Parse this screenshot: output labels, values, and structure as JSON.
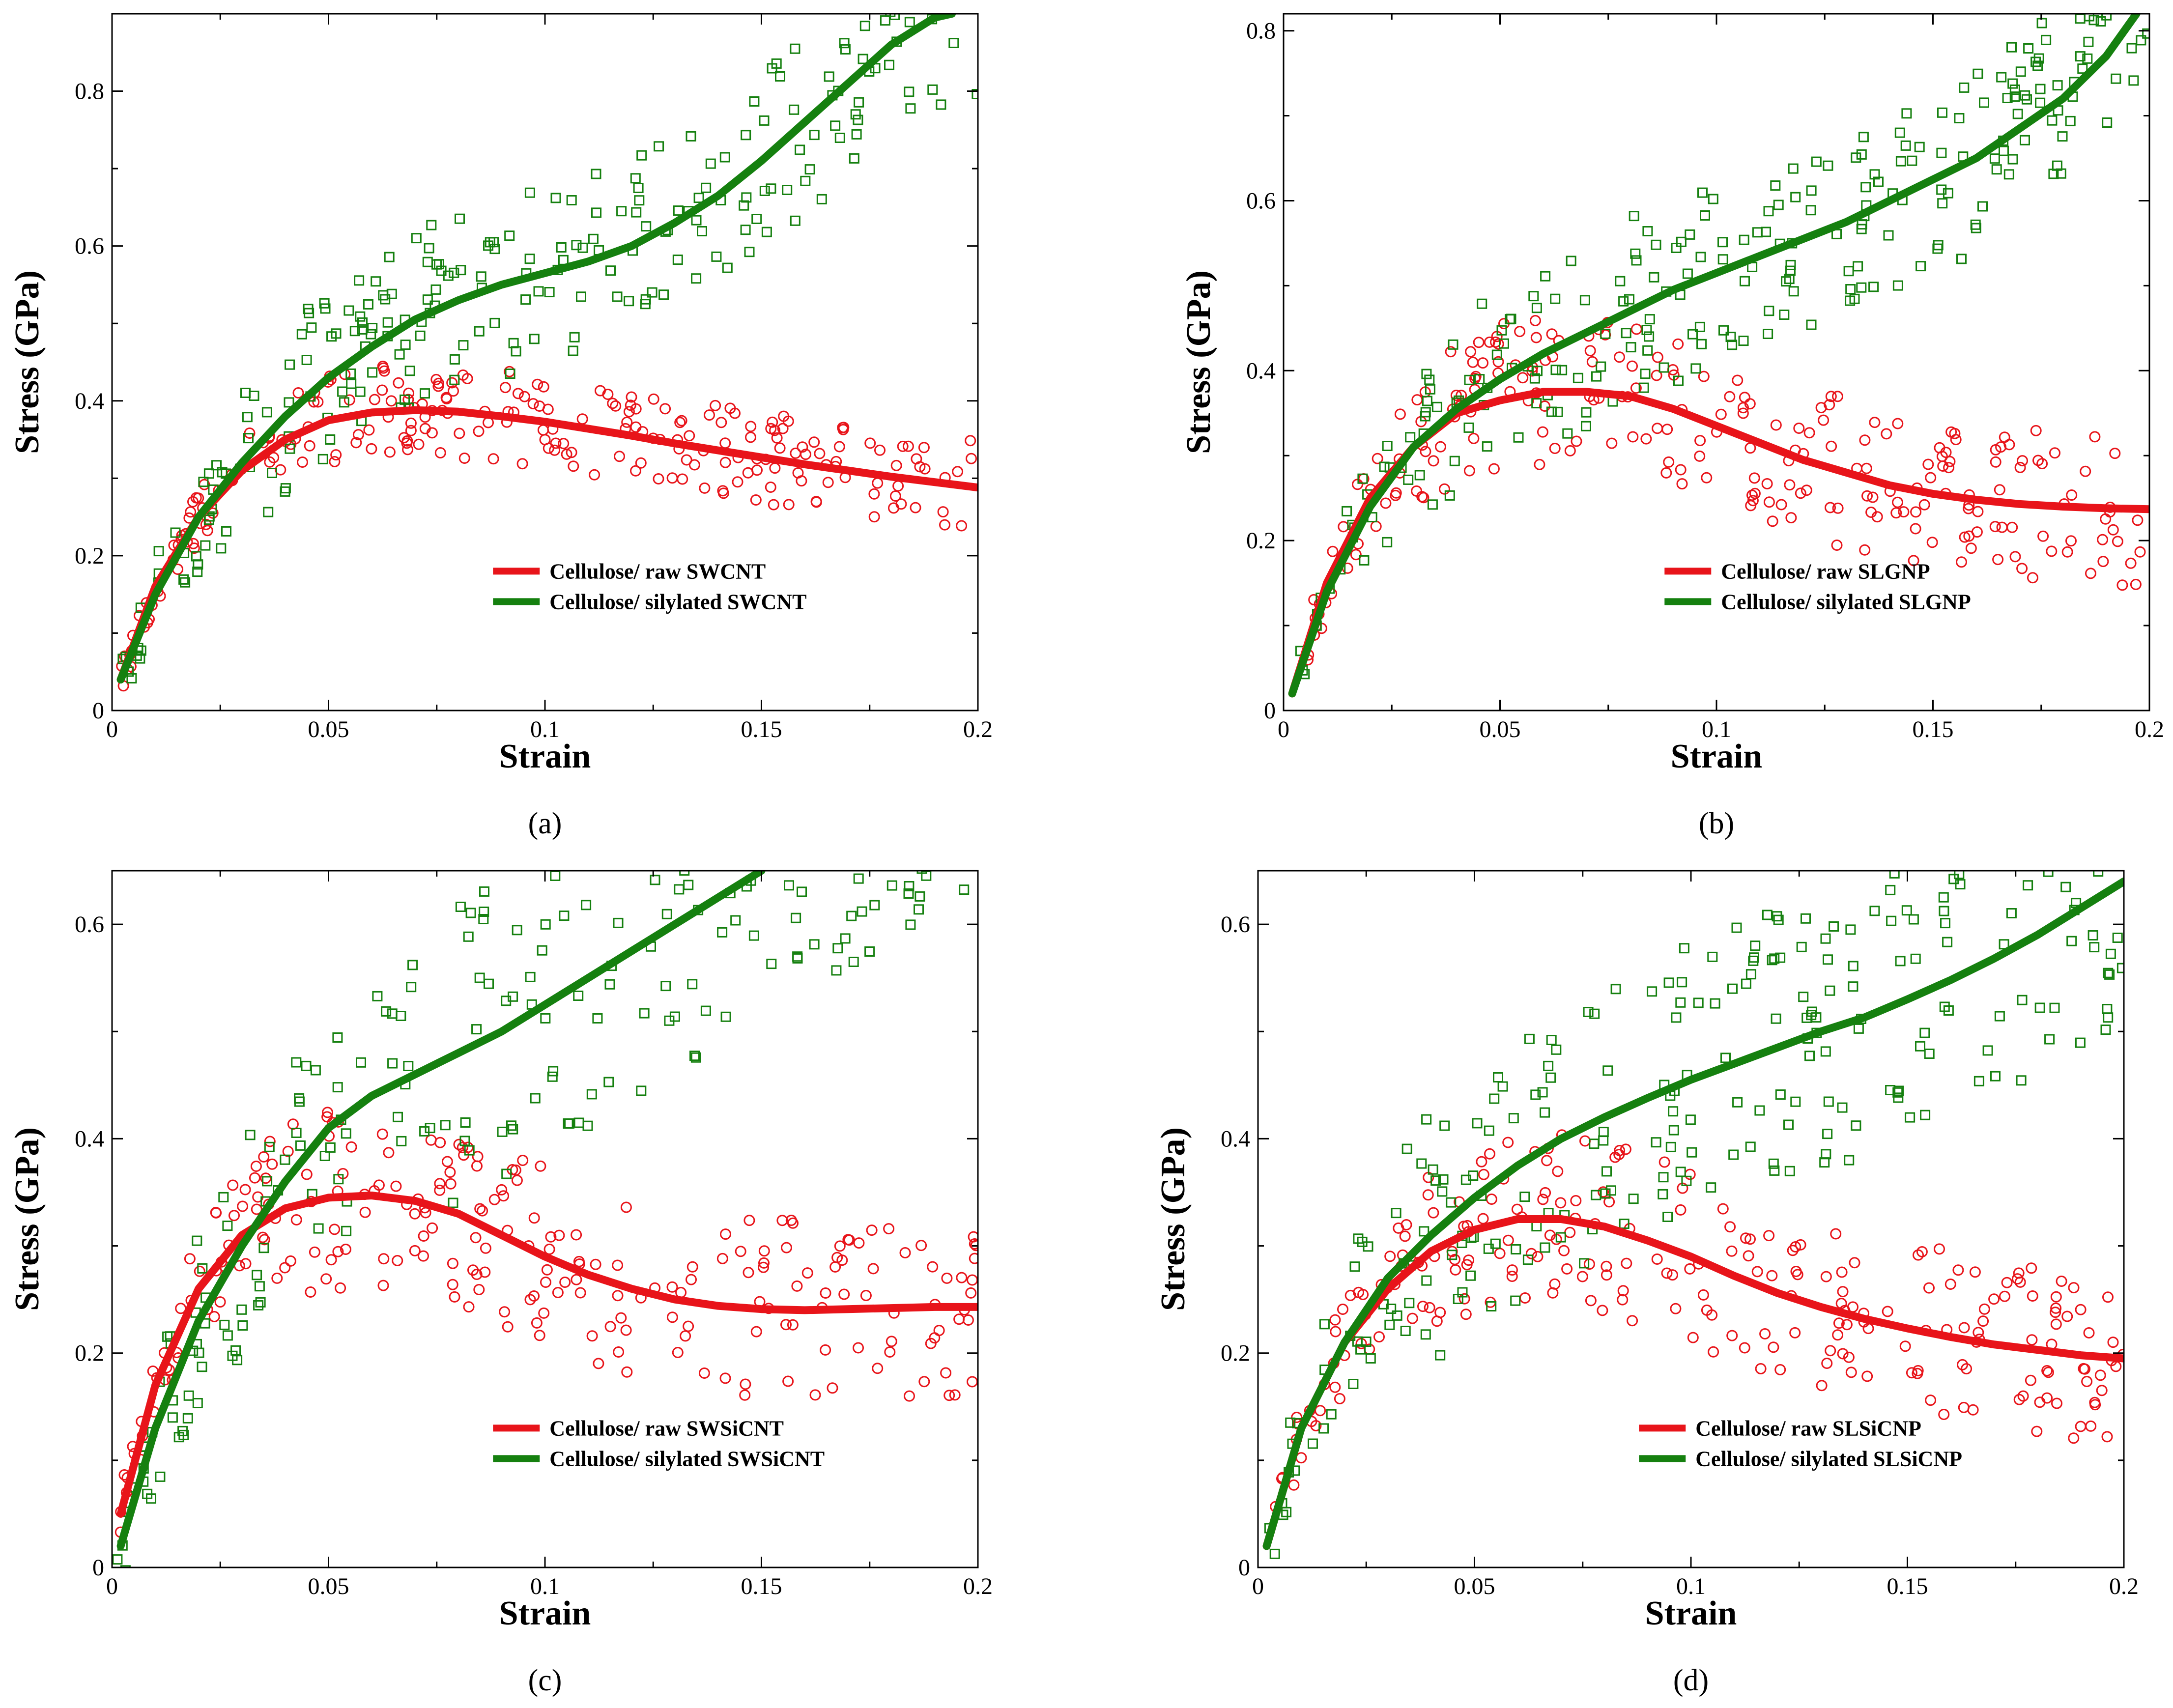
{
  "chart_data": [
    {
      "type": "scatter",
      "caption": "(a)",
      "xlabel": "Strain",
      "ylabel": "Stress (GPa)",
      "xlim": [
        0,
        0.2
      ],
      "ylim": [
        0,
        0.9
      ],
      "xticks": [
        0,
        0.05,
        0.1,
        0.15,
        0.2
      ],
      "xtick_labels": [
        "0",
        "0.05",
        "0.1",
        "0.15",
        "0.2"
      ],
      "yticks": [
        0,
        0.2,
        0.4,
        0.6,
        0.8
      ],
      "ytick_labels": [
        "0",
        "0.2",
        "0.4",
        "0.6",
        "0.8"
      ],
      "legend_position": "lower-right",
      "series": [
        {
          "name": "Cellulose/ raw SWCNT",
          "color": "#e8141a",
          "marker": "circle",
          "fit_x": [
            0.002,
            0.01,
            0.02,
            0.03,
            0.04,
            0.05,
            0.06,
            0.07,
            0.08,
            0.09,
            0.1,
            0.11,
            0.12,
            0.13,
            0.14,
            0.15,
            0.16,
            0.17,
            0.18,
            0.19,
            0.2
          ],
          "fit_y": [
            0.04,
            0.16,
            0.25,
            0.31,
            0.35,
            0.375,
            0.385,
            0.388,
            0.386,
            0.38,
            0.373,
            0.364,
            0.355,
            0.345,
            0.336,
            0.327,
            0.318,
            0.31,
            0.302,
            0.295,
            0.288
          ],
          "scatter_amp": 0.06,
          "scatter_seed": 11
        },
        {
          "name": "Cellulose/ silylated SWCNT",
          "color": "#15800f",
          "marker": "square",
          "fit_x": [
            0.002,
            0.01,
            0.02,
            0.03,
            0.04,
            0.05,
            0.06,
            0.07,
            0.08,
            0.09,
            0.1,
            0.11,
            0.12,
            0.13,
            0.14,
            0.15,
            0.16,
            0.17,
            0.18,
            0.19,
            0.194
          ],
          "fit_y": [
            0.04,
            0.15,
            0.25,
            0.32,
            0.38,
            0.43,
            0.47,
            0.505,
            0.53,
            0.55,
            0.565,
            0.58,
            0.6,
            0.63,
            0.665,
            0.71,
            0.76,
            0.81,
            0.86,
            0.895,
            0.9
          ],
          "scatter_amp": 0.12,
          "scatter_seed": 23
        }
      ]
    },
    {
      "type": "scatter",
      "caption": "(b)",
      "xlabel": "Strain",
      "ylabel": "Stress (GPa)",
      "xlim": [
        0,
        0.2
      ],
      "ylim": [
        0,
        0.82
      ],
      "xticks": [
        0,
        0.05,
        0.1,
        0.15,
        0.2
      ],
      "xtick_labels": [
        "0",
        "0.05",
        "0.1",
        "0.15",
        "0.2"
      ],
      "yticks": [
        0,
        0.2,
        0.4,
        0.6,
        0.8
      ],
      "ytick_labels": [
        "0",
        "0.2",
        "0.4",
        "0.6",
        "0.8"
      ],
      "legend_position": "lower-right",
      "series": [
        {
          "name": "Cellulose/ raw SLGNP",
          "color": "#e8141a",
          "marker": "circle",
          "fit_x": [
            0.002,
            0.01,
            0.02,
            0.03,
            0.04,
            0.05,
            0.06,
            0.07,
            0.08,
            0.09,
            0.1,
            0.11,
            0.12,
            0.13,
            0.14,
            0.15,
            0.16,
            0.17,
            0.18,
            0.19,
            0.2
          ],
          "fit_y": [
            0.02,
            0.15,
            0.25,
            0.31,
            0.35,
            0.365,
            0.375,
            0.375,
            0.37,
            0.355,
            0.335,
            0.315,
            0.295,
            0.28,
            0.265,
            0.255,
            0.248,
            0.243,
            0.24,
            0.238,
            0.237
          ],
          "scatter_amp": 0.09,
          "scatter_seed": 37
        },
        {
          "name": "Cellulose/ silylated SLGNP",
          "color": "#15800f",
          "marker": "square",
          "fit_x": [
            0.002,
            0.01,
            0.02,
            0.03,
            0.04,
            0.05,
            0.06,
            0.07,
            0.08,
            0.09,
            0.1,
            0.11,
            0.12,
            0.13,
            0.14,
            0.15,
            0.16,
            0.17,
            0.18,
            0.19,
            0.197
          ],
          "fit_y": [
            0.02,
            0.14,
            0.24,
            0.31,
            0.355,
            0.39,
            0.42,
            0.445,
            0.47,
            0.495,
            0.515,
            0.535,
            0.555,
            0.575,
            0.6,
            0.625,
            0.65,
            0.685,
            0.72,
            0.77,
            0.82
          ],
          "scatter_amp": 0.11,
          "scatter_seed": 41
        }
      ]
    },
    {
      "type": "scatter",
      "caption": "(c)",
      "xlabel": "Strain",
      "ylabel": "Stress (GPa)",
      "xlim": [
        0,
        0.2
      ],
      "ylim": [
        0,
        0.65
      ],
      "xticks": [
        0,
        0.05,
        0.1,
        0.15,
        0.2
      ],
      "xtick_labels": [
        "0",
        "0.05",
        "0.1",
        "0.15",
        "0.2"
      ],
      "yticks": [
        0,
        0.2,
        0.4,
        0.6
      ],
      "ytick_labels": [
        "0",
        "0.2",
        "0.4",
        "0.6"
      ],
      "legend_position": "lower-right",
      "series": [
        {
          "name": "Cellulose/ raw SWSiCNT",
          "color": "#e8141a",
          "marker": "circle",
          "fit_x": [
            0.002,
            0.01,
            0.02,
            0.03,
            0.04,
            0.05,
            0.06,
            0.07,
            0.08,
            0.09,
            0.1,
            0.11,
            0.12,
            0.13,
            0.14,
            0.15,
            0.16,
            0.17,
            0.18,
            0.19,
            0.2
          ],
          "fit_y": [
            0.05,
            0.17,
            0.26,
            0.31,
            0.335,
            0.345,
            0.347,
            0.342,
            0.33,
            0.31,
            0.29,
            0.273,
            0.26,
            0.25,
            0.244,
            0.241,
            0.24,
            0.241,
            0.242,
            0.243,
            0.243
          ],
          "scatter_amp": 0.085,
          "scatter_seed": 53
        },
        {
          "name": "Cellulose/ silylated SWSiCNT",
          "color": "#15800f",
          "marker": "square",
          "fit_x": [
            0.002,
            0.01,
            0.02,
            0.03,
            0.04,
            0.05,
            0.06,
            0.07,
            0.08,
            0.09,
            0.1,
            0.11,
            0.12,
            0.13,
            0.14,
            0.15
          ],
          "fit_y": [
            0.02,
            0.13,
            0.23,
            0.3,
            0.36,
            0.41,
            0.44,
            0.46,
            0.48,
            0.5,
            0.525,
            0.55,
            0.575,
            0.6,
            0.625,
            0.65
          ],
          "scatter_amp": 0.14,
          "scatter_seed": 67
        }
      ]
    },
    {
      "type": "scatter",
      "caption": "(d)",
      "xlabel": "Strain",
      "ylabel": "Stress (GPa)",
      "xlim": [
        0,
        0.2
      ],
      "ylim": [
        0,
        0.65
      ],
      "xticks": [
        0,
        0.05,
        0.1,
        0.15,
        0.2
      ],
      "xtick_labels": [
        "0",
        "0.05",
        "0.1",
        "0.15",
        "0.2"
      ],
      "yticks": [
        0,
        0.2,
        0.4,
        0.6
      ],
      "ytick_labels": [
        "0",
        "0.2",
        "0.4",
        "0.6"
      ],
      "legend_position": "lower-right",
      "series": [
        {
          "name": "Cellulose/ raw SLSiCNP",
          "color": "#e8141a",
          "marker": "circle",
          "fit_x": [
            0.002,
            0.01,
            0.02,
            0.03,
            0.04,
            0.05,
            0.06,
            0.07,
            0.08,
            0.09,
            0.1,
            0.11,
            0.12,
            0.13,
            0.14,
            0.15,
            0.16,
            0.17,
            0.18,
            0.19,
            0.2
          ],
          "fit_y": [
            0.02,
            0.13,
            0.21,
            0.26,
            0.295,
            0.315,
            0.325,
            0.325,
            0.318,
            0.305,
            0.29,
            0.272,
            0.256,
            0.243,
            0.232,
            0.223,
            0.215,
            0.208,
            0.203,
            0.198,
            0.195
          ],
          "scatter_amp": 0.08,
          "scatter_seed": 79
        },
        {
          "name": "Cellulose/ silylated SLSiCNP",
          "color": "#15800f",
          "marker": "square",
          "fit_x": [
            0.002,
            0.01,
            0.02,
            0.03,
            0.04,
            0.05,
            0.06,
            0.07,
            0.08,
            0.09,
            0.1,
            0.11,
            0.12,
            0.13,
            0.14,
            0.15,
            0.16,
            0.17,
            0.18,
            0.19,
            0.2
          ],
          "fit_y": [
            0.02,
            0.13,
            0.21,
            0.27,
            0.31,
            0.345,
            0.375,
            0.4,
            0.42,
            0.438,
            0.455,
            0.47,
            0.485,
            0.5,
            0.513,
            0.53,
            0.548,
            0.568,
            0.59,
            0.615,
            0.64
          ],
          "scatter_amp": 0.13,
          "scatter_seed": 97
        }
      ]
    }
  ]
}
